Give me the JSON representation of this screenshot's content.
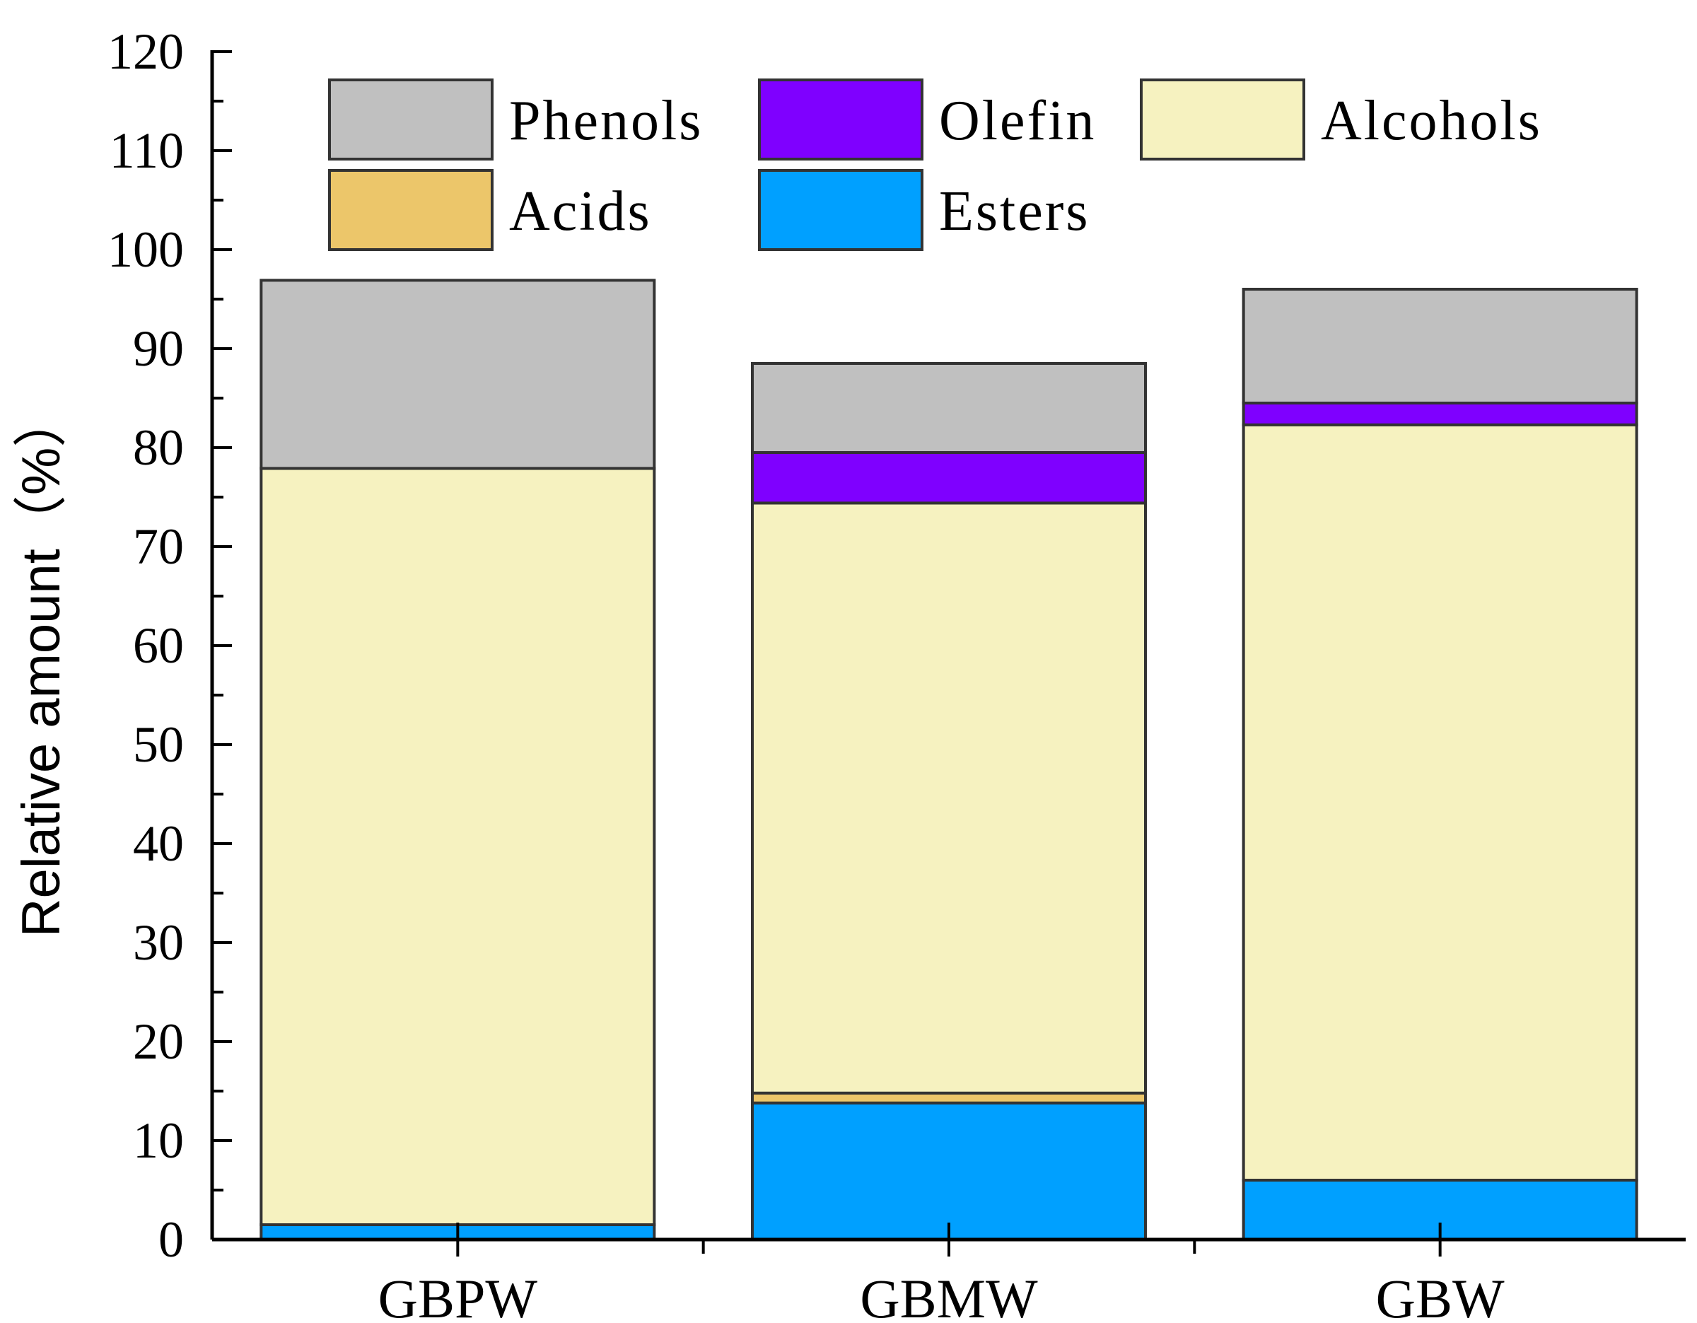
{
  "chart_data": {
    "type": "bar",
    "stacked": true,
    "categories": [
      "GBPW",
      "GBMW",
      "GBW"
    ],
    "series": [
      {
        "name": "Esters",
        "color": "#00A0FF",
        "values": [
          1.5,
          13.8,
          6.0
        ]
      },
      {
        "name": "Acids",
        "color": "#ECC66A",
        "values": [
          0,
          1.0,
          0
        ]
      },
      {
        "name": "Alcohols",
        "color": "#F6F2C0",
        "values": [
          76.4,
          59.6,
          76.3
        ]
      },
      {
        "name": "Olefin",
        "color": "#7F00FF",
        "values": [
          0,
          5.1,
          2.2
        ]
      },
      {
        "name": "Phenols",
        "color": "#C0C0C0",
        "values": [
          19.0,
          9.0,
          11.5
        ]
      }
    ],
    "legend_order": [
      "Phenols",
      "Olefin",
      "Alcohols",
      "Acids",
      "Esters"
    ],
    "legend_placement": "top",
    "title": "",
    "xlabel": "",
    "ylabel": "Relative amount（%）",
    "ylim": [
      0,
      120
    ],
    "yticks": [
      0,
      10,
      20,
      30,
      40,
      50,
      60,
      70,
      80,
      90,
      100,
      110,
      120
    ],
    "grid": false
  }
}
